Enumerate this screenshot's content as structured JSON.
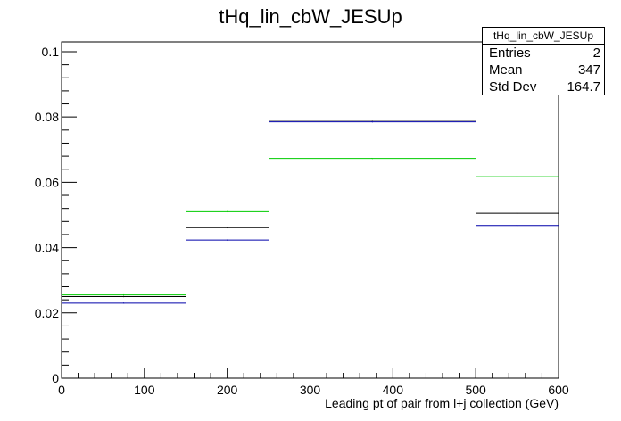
{
  "chart_data": {
    "type": "histogram",
    "title": "tHq_lin_cbW_JESUp",
    "xlabel": "Leading pt of pair from l+j collection (GeV)",
    "ylabel": "",
    "xlim": [
      0,
      600
    ],
    "ylim": [
      0,
      0.103
    ],
    "x_ticks": [
      "0",
      "100",
      "200",
      "300",
      "400",
      "500",
      "600"
    ],
    "y_ticks": [
      "0",
      "0.02",
      "0.04",
      "0.06",
      "0.08",
      "0.1"
    ],
    "bin_edges": [
      0,
      150,
      250,
      500,
      600
    ],
    "series": [
      {
        "color": "#00cc00",
        "values": [
          0.0255,
          0.051,
          0.0673,
          0.0617
        ]
      },
      {
        "color": "#000000",
        "values": [
          0.025,
          0.0461,
          0.079,
          0.0505
        ]
      },
      {
        "color": "#0000aa",
        "values": [
          0.023,
          0.0423,
          0.0785,
          0.0468
        ]
      }
    ],
    "stats": {
      "name": "tHq_lin_cbW_JESUp",
      "rows": [
        {
          "label": "Entries",
          "value": "2"
        },
        {
          "label": "Mean",
          "value": "347"
        },
        {
          "label": "Std Dev",
          "value": "164.7"
        }
      ]
    }
  }
}
